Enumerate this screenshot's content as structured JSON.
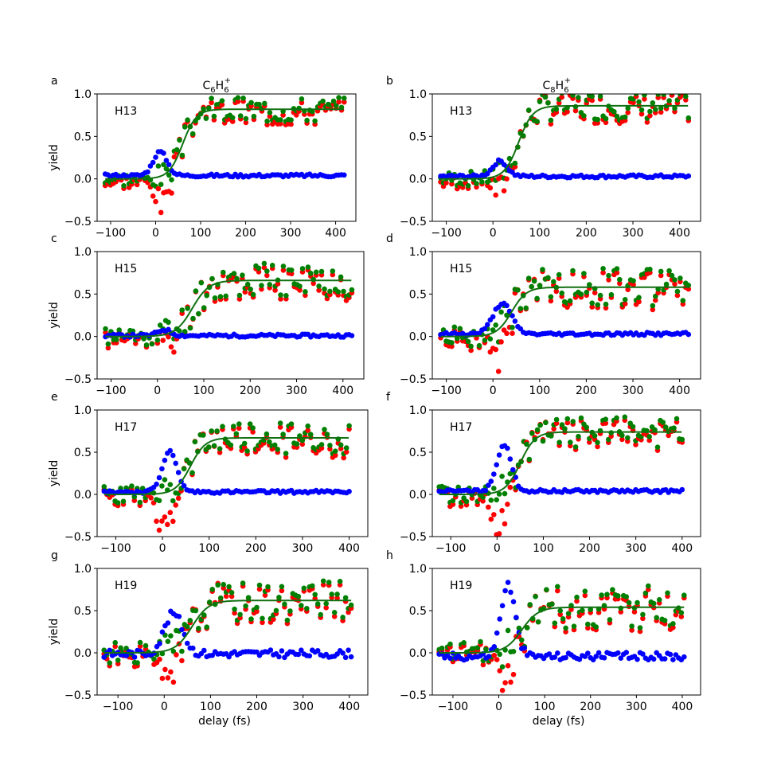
{
  "figure": {
    "xlabel": "delay (fs)",
    "ylabel": "yield",
    "colors": {
      "blue": "#0000ff",
      "red": "#ff0000",
      "green": "#008000",
      "fit": "#107010"
    }
  },
  "chart_data": [
    {
      "type": "scatter",
      "panel_letter": "a",
      "title": "C6H6+",
      "title_main": "C",
      "title_sub1": "6",
      "title_mid": "H",
      "title_sub2": "6",
      "title_sup": "+",
      "harmonic": "H13",
      "xlim": [
        -130,
        445
      ],
      "ylim": [
        -0.5,
        1.0
      ],
      "xticks": [
        -100,
        0,
        100,
        200,
        300,
        400
      ],
      "yticks": [
        -0.5,
        0.0,
        0.5,
        1.0
      ],
      "xlabel": "",
      "ylabel": "yield",
      "xstart": -112,
      "xstep": 5.9,
      "npts": 91,
      "blue": {
        "peak_x": 10,
        "amp": 0.28,
        "width": 22,
        "base": 0.04
      },
      "fit": {
        "center": 60,
        "width": 38,
        "plateau": 0.82
      },
      "scatter": {
        "noise": 0.12,
        "dip_x": 15,
        "dip": 0.32,
        "seed": 3
      }
    },
    {
      "type": "scatter",
      "panel_letter": "b",
      "title": "C8H6+",
      "title_main": "C",
      "title_sub1": "8",
      "title_mid": "H",
      "title_sub2": "6",
      "title_sup": "+",
      "harmonic": "H13",
      "xlim": [
        -130,
        445
      ],
      "ylim": [
        -0.5,
        1.0
      ],
      "xticks": [
        -100,
        0,
        100,
        200,
        300,
        400
      ],
      "yticks": [
        -0.5,
        0.0,
        0.5,
        1.0
      ],
      "xlabel": "",
      "ylabel": "",
      "xstart": -112,
      "xstep": 5.9,
      "npts": 91,
      "blue": {
        "peak_x": 15,
        "amp": 0.18,
        "width": 22,
        "base": 0.03
      },
      "fit": {
        "center": 55,
        "width": 38,
        "plateau": 0.86
      },
      "scatter": {
        "noise": 0.13,
        "dip_x": 15,
        "dip": 0.18,
        "seed": 7
      }
    },
    {
      "type": "scatter",
      "panel_letter": "c",
      "title": "",
      "harmonic": "H15",
      "xlim": [
        -130,
        445
      ],
      "ylim": [
        -0.5,
        1.0
      ],
      "xticks": [
        -100,
        0,
        100,
        200,
        300,
        400
      ],
      "yticks": [
        -0.5,
        0.0,
        0.5,
        1.0
      ],
      "xlabel": "",
      "ylabel": "yield",
      "xstart": -112,
      "xstep": 5.9,
      "npts": 91,
      "blue": {
        "peak_x": 15,
        "amp": 0.07,
        "width": 20,
        "base": 0.01
      },
      "fit": {
        "center": 75,
        "width": 45,
        "plateau": 0.66
      },
      "scatter": {
        "noise": 0.16,
        "dip_x": 25,
        "dip": 0.18,
        "seed": 11
      }
    },
    {
      "type": "scatter",
      "panel_letter": "d",
      "title": "",
      "harmonic": "H15",
      "xlim": [
        -130,
        445
      ],
      "ylim": [
        -0.5,
        1.0
      ],
      "xticks": [
        -100,
        0,
        100,
        200,
        300,
        400
      ],
      "yticks": [
        -0.5,
        0.0,
        0.5,
        1.0
      ],
      "xlabel": "",
      "ylabel": "",
      "xstart": -112,
      "xstep": 5.9,
      "npts": 91,
      "blue": {
        "peak_x": 20,
        "amp": 0.36,
        "width": 28,
        "base": 0.03
      },
      "fit": {
        "center": 40,
        "width": 40,
        "plateau": 0.58
      },
      "scatter": {
        "noise": 0.17,
        "dip_x": 15,
        "dip": 0.35,
        "seed": 19
      }
    },
    {
      "type": "scatter",
      "panel_letter": "e",
      "title": "",
      "harmonic": "H17",
      "xlim": [
        -140,
        440
      ],
      "ylim": [
        -0.5,
        1.0
      ],
      "xticks": [
        -100,
        0,
        100,
        200,
        300,
        400
      ],
      "yticks": [
        -0.5,
        0.0,
        0.5,
        1.0
      ],
      "xlabel": "",
      "ylabel": "yield",
      "xstart": -125,
      "xstep": 5.9,
      "npts": 90,
      "blue": {
        "peak_x": 15,
        "amp": 0.48,
        "width": 22,
        "base": 0.03
      },
      "fit": {
        "center": 60,
        "width": 40,
        "plateau": 0.67
      },
      "scatter": {
        "noise": 0.15,
        "dip_x": 5,
        "dip": 0.45,
        "seed": 23
      }
    },
    {
      "type": "scatter",
      "panel_letter": "f",
      "title": "",
      "harmonic": "H17",
      "xlim": [
        -140,
        440
      ],
      "ylim": [
        -0.5,
        1.0
      ],
      "xticks": [
        -100,
        0,
        100,
        200,
        300,
        400
      ],
      "yticks": [
        -0.5,
        0.0,
        0.5,
        1.0
      ],
      "xlabel": "",
      "ylabel": "",
      "xstart": -125,
      "xstep": 5.9,
      "npts": 90,
      "blue": {
        "peak_x": 15,
        "amp": 0.55,
        "width": 22,
        "base": 0.04
      },
      "fit": {
        "center": 50,
        "width": 40,
        "plateau": 0.74
      },
      "scatter": {
        "noise": 0.14,
        "dip_x": 5,
        "dip": 0.45,
        "seed": 29
      }
    },
    {
      "type": "scatter",
      "panel_letter": "g",
      "title": "",
      "harmonic": "H19",
      "xlim": [
        -145,
        440
      ],
      "ylim": [
        -0.5,
        1.0
      ],
      "xticks": [
        -100,
        0,
        100,
        200,
        300,
        400
      ],
      "yticks": [
        -0.5,
        0.0,
        0.5,
        1.0
      ],
      "xlabel": "delay (fs)",
      "ylabel": "yield",
      "xstart": -130,
      "xstep": 6.0,
      "npts": 90,
      "blue": {
        "peak_x": 20,
        "amp": 0.48,
        "width": 28,
        "base": -0.01
      },
      "fit": {
        "center": 60,
        "width": 45,
        "plateau": 0.62
      },
      "scatter": {
        "noise": 0.18,
        "dip_x": 10,
        "dip": 0.45,
        "seed": 31
      }
    },
    {
      "type": "scatter",
      "panel_letter": "h",
      "title": "",
      "harmonic": "H19",
      "xlim": [
        -145,
        440
      ],
      "ylim": [
        -0.5,
        1.0
      ],
      "xticks": [
        -100,
        0,
        100,
        200,
        300,
        400
      ],
      "yticks": [
        -0.5,
        0.0,
        0.5,
        1.0
      ],
      "xlabel": "delay (fs)",
      "ylabel": "",
      "xstart": -130,
      "xstep": 6.0,
      "npts": 90,
      "blue": {
        "peak_x": 20,
        "amp": 0.85,
        "width": 22,
        "base": -0.04
      },
      "fit": {
        "center": 50,
        "width": 45,
        "plateau": 0.54
      },
      "scatter": {
        "noise": 0.2,
        "dip_x": 20,
        "dip": 0.4,
        "seed": 37
      }
    }
  ]
}
